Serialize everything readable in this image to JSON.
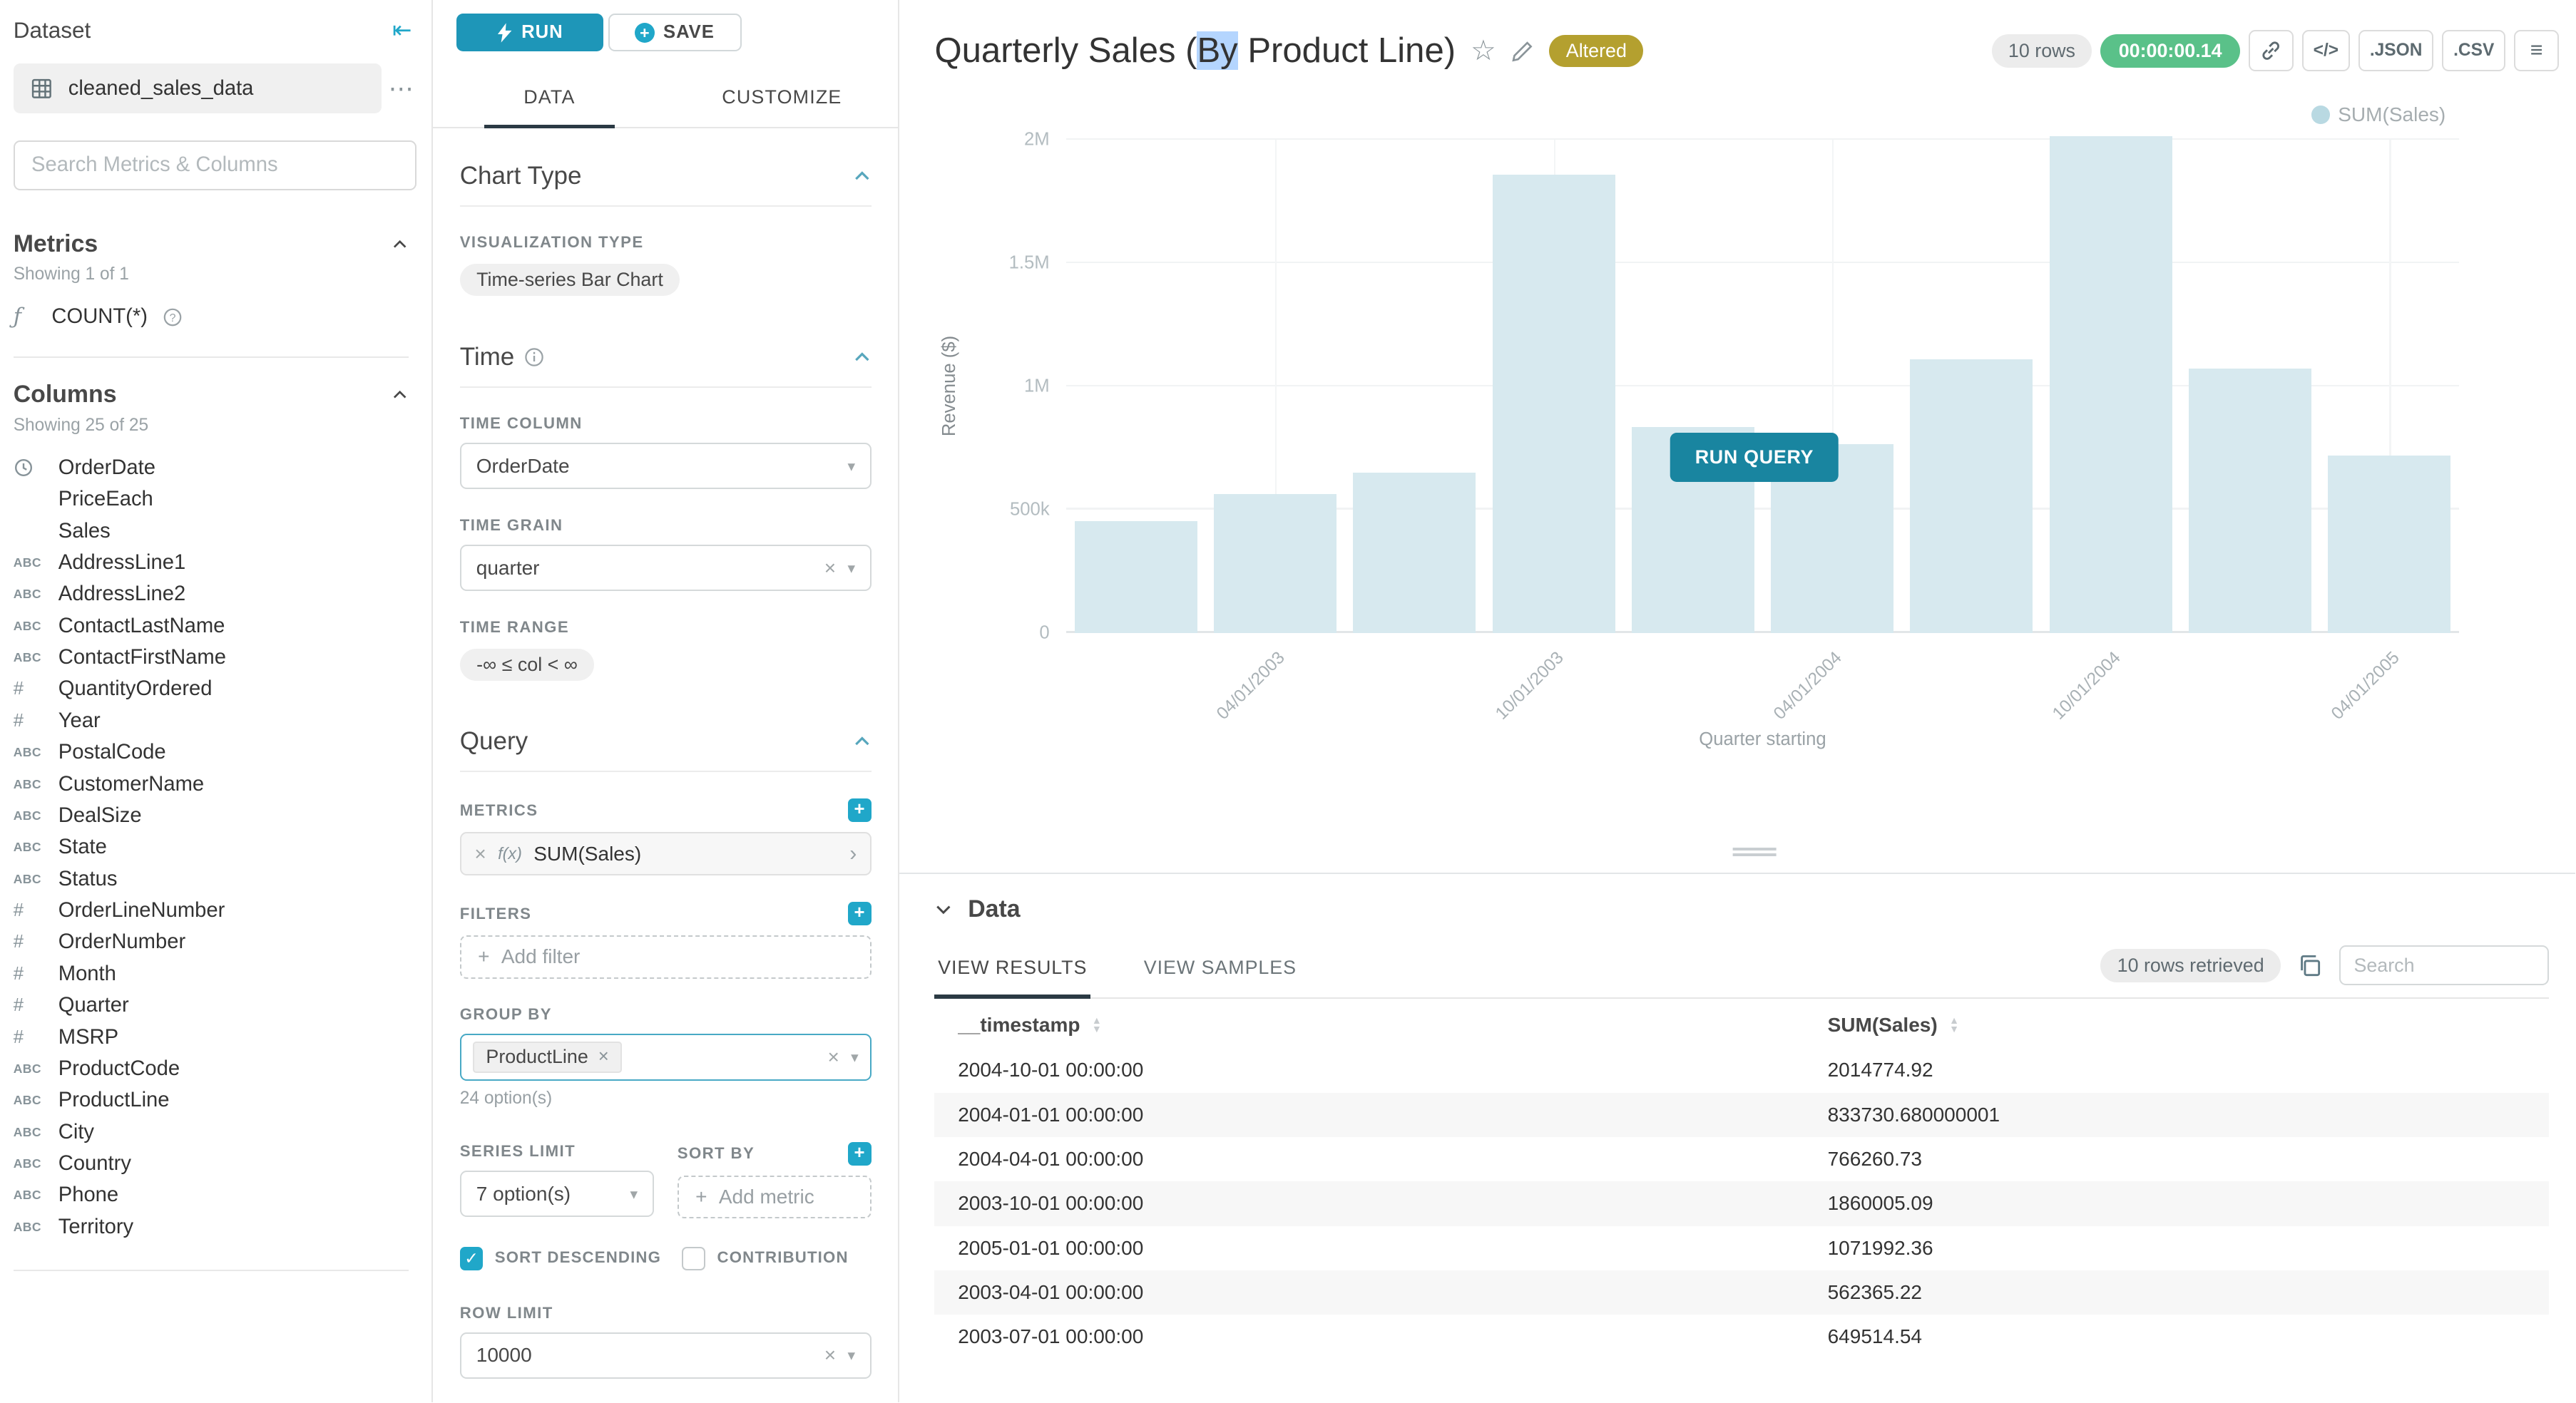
{
  "sidebar": {
    "header": "Dataset",
    "dataset_name": "cleaned_sales_data",
    "search_placeholder": "Search Metrics & Columns",
    "metrics_header": "Metrics",
    "metrics_showing": "Showing 1 of 1",
    "metric_label": "COUNT(*)",
    "columns_header": "Columns",
    "columns_showing": "Showing 25 of 25",
    "columns": {
      "items": [
        {
          "type": "time",
          "label": "OrderDate"
        },
        {
          "type": "none",
          "label": "PriceEach"
        },
        {
          "type": "none",
          "label": "Sales"
        },
        {
          "type": "text",
          "label": "AddressLine1"
        },
        {
          "type": "text",
          "label": "AddressLine2"
        },
        {
          "type": "text",
          "label": "ContactLastName"
        },
        {
          "type": "text",
          "label": "ContactFirstName"
        },
        {
          "type": "num",
          "label": "QuantityOrdered"
        },
        {
          "type": "num",
          "label": "Year"
        },
        {
          "type": "text",
          "label": "PostalCode"
        },
        {
          "type": "text",
          "label": "CustomerName"
        },
        {
          "type": "text",
          "label": "DealSize"
        },
        {
          "type": "text",
          "label": "State"
        },
        {
          "type": "text",
          "label": "Status"
        },
        {
          "type": "num",
          "label": "OrderLineNumber"
        },
        {
          "type": "num",
          "label": "OrderNumber"
        },
        {
          "type": "num",
          "label": "Month"
        },
        {
          "type": "num",
          "label": "Quarter"
        },
        {
          "type": "num",
          "label": "MSRP"
        },
        {
          "type": "text",
          "label": "ProductCode"
        },
        {
          "type": "text",
          "label": "ProductLine"
        },
        {
          "type": "text",
          "label": "City"
        },
        {
          "type": "text",
          "label": "Country"
        },
        {
          "type": "text",
          "label": "Phone"
        },
        {
          "type": "text",
          "label": "Territory"
        }
      ]
    }
  },
  "controls": {
    "run": "RUN",
    "save": "SAVE",
    "tab_data": "DATA",
    "tab_customize": "CUSTOMIZE",
    "chart_type_header": "Chart Type",
    "viz_type_label": "VISUALIZATION TYPE",
    "viz_type_value": "Time-series Bar Chart",
    "time_header": "Time",
    "time_column_label": "TIME COLUMN",
    "time_column_value": "OrderDate",
    "time_grain_label": "TIME GRAIN",
    "time_grain_value": "quarter",
    "time_range_label": "TIME RANGE",
    "time_range_value": "-∞ ≤ col < ∞",
    "query_header": "Query",
    "metrics_label": "METRICS",
    "metric_fx": "f(x)",
    "metric_value": "SUM(Sales)",
    "filters_label": "FILTERS",
    "add_filter": "Add filter",
    "group_by_label": "GROUP BY",
    "group_by_chip": "ProductLine",
    "group_by_options": "24 option(s)",
    "series_limit_label": "SERIES LIMIT",
    "series_limit_value": "7 option(s)",
    "sort_by_label": "SORT BY",
    "add_metric": "Add metric",
    "sort_descending": "SORT DESCENDING",
    "contribution": "CONTRIBUTION",
    "row_limit_label": "ROW LIMIT",
    "row_limit_value": "10000"
  },
  "header": {
    "title_pre": "Quarterly Sales (",
    "title_selected": "By",
    "title_post": " Product Line)",
    "altered": "Altered",
    "rows_badge": "10 rows",
    "timer": "00:00:00.14",
    "json": ".JSON",
    "csv": ".CSV"
  },
  "chart": {
    "legend": "SUM(Sales)",
    "ylabel": "Revenue ($)",
    "xlabel": "Quarter starting",
    "run_query": "RUN QUERY"
  },
  "chart_data": {
    "type": "bar",
    "title": "Quarterly Sales (By Product Line)",
    "series_name": "SUM(Sales)",
    "xlabel": "Quarter starting",
    "ylabel": "Revenue ($)",
    "ylim": [
      0,
      2000000
    ],
    "grid": true,
    "legend_position": "top-right",
    "x": [
      "2003-01-01",
      "2003-04-01",
      "2003-07-01",
      "2003-10-01",
      "2004-01-01",
      "2004-04-01",
      "2004-07-01",
      "2004-10-01",
      "2005-01-01",
      "2005-04-01"
    ],
    "values": [
      453000,
      562365,
      649515,
      1860005,
      833731,
      766261,
      1110000,
      2014775,
      1071992,
      720000
    ],
    "yticks": [
      {
        "label": "0",
        "value": 0
      },
      {
        "label": "500k",
        "value": 500000
      },
      {
        "label": "1M",
        "value": 1000000
      },
      {
        "label": "1.5M",
        "value": 1500000
      },
      {
        "label": "2M",
        "value": 2000000
      }
    ],
    "xticks": [
      {
        "label": "04/01/2003",
        "slot": 1
      },
      {
        "label": "10/01/2003",
        "slot": 3
      },
      {
        "label": "04/01/2004",
        "slot": 5
      },
      {
        "label": "10/01/2004",
        "slot": 7
      },
      {
        "label": "04/01/2005",
        "slot": 9
      }
    ]
  },
  "results": {
    "header": "Data",
    "tab_results": "VIEW RESULTS",
    "tab_samples": "VIEW SAMPLES",
    "rows_retrieved": "10 rows retrieved",
    "search_placeholder": "Search",
    "col_timestamp": "__timestamp",
    "col_value": "SUM(Sales)",
    "rows": [
      [
        "2004-10-01 00:00:00",
        "2014774.92"
      ],
      [
        "2004-01-01 00:00:00",
        "833730.680000001"
      ],
      [
        "2004-04-01 00:00:00",
        "766260.73"
      ],
      [
        "2003-10-01 00:00:00",
        "1860005.09"
      ],
      [
        "2005-01-01 00:00:00",
        "1071992.36"
      ],
      [
        "2003-04-01 00:00:00",
        "562365.22"
      ],
      [
        "2003-07-01 00:00:00",
        "649514.54"
      ]
    ]
  },
  "colors": {
    "primary": "#20a7c9",
    "success": "#5ac189",
    "warning": "#b4a02f",
    "bar_faded": "#d7e9ef"
  }
}
